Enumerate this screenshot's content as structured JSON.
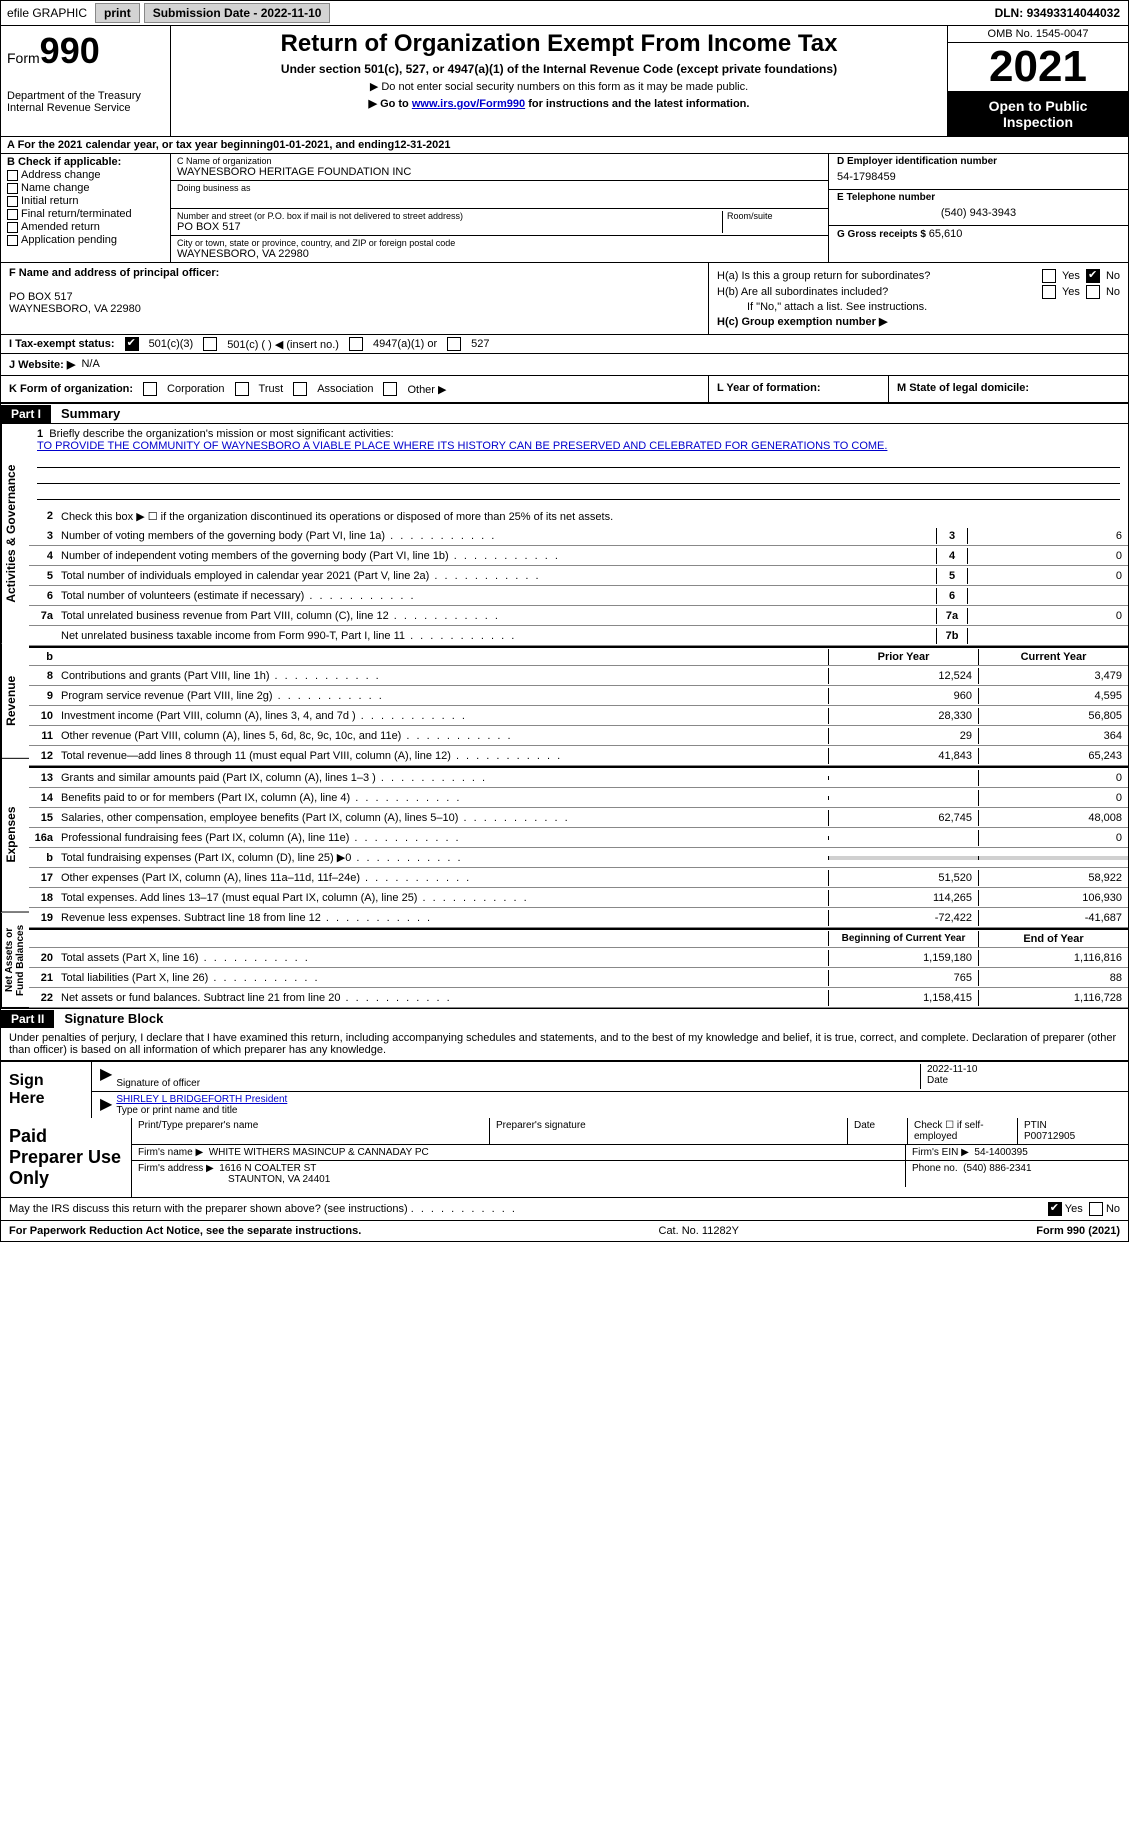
{
  "topbar": {
    "efile": "efile GRAPHIC",
    "print": "print",
    "sub_label": "Submission Date - ",
    "sub_date": "2022-11-10",
    "dln_label": "DLN: ",
    "dln": "93493314044032"
  },
  "header": {
    "form_word": "Form",
    "form_num": "990",
    "dept": "Department of the Treasury",
    "irs": "Internal Revenue Service",
    "title": "Return of Organization Exempt From Income Tax",
    "sub1": "Under section 501(c), 527, or 4947(a)(1) of the Internal Revenue Code (except private foundations)",
    "sub2": "▶ Do not enter social security numbers on this form as it may be made public.",
    "sub3_pre": "▶ Go to ",
    "sub3_link": "www.irs.gov/Form990",
    "sub3_post": " for instructions and the latest information.",
    "omb": "OMB No. 1545-0047",
    "year": "2021",
    "inspect1": "Open to Public",
    "inspect2": "Inspection"
  },
  "lineA": {
    "text_pre": "A For the 2021 calendar year, or tax year beginning ",
    "begin": "01-01-2021",
    "mid": " , and ending ",
    "end": "12-31-2021"
  },
  "sectionB": {
    "hdr": "B Check if applicable:",
    "opts": [
      "Address change",
      "Name change",
      "Initial return",
      "Final return/terminated",
      "Amended return",
      "Application pending"
    ]
  },
  "sectionC": {
    "name_lbl": "C Name of organization",
    "name": "WAYNESBORO HERITAGE FOUNDATION INC",
    "dba_lbl": "Doing business as",
    "dba": "",
    "addr_lbl": "Number and street (or P.O. box if mail is not delivered to street address)",
    "room_lbl": "Room/suite",
    "addr": "PO BOX 517",
    "city_lbl": "City or town, state or province, country, and ZIP or foreign postal code",
    "city": "WAYNESBORO, VA  22980"
  },
  "sectionD": {
    "ein_lbl": "D Employer identification number",
    "ein": "54-1798459",
    "tel_lbl": "E Telephone number",
    "tel": "(540) 943-3943",
    "gross_lbl": "G Gross receipts $ ",
    "gross": "65,610"
  },
  "sectionF": {
    "lbl": "F Name and address of principal officer:",
    "name": "",
    "addr1": "PO BOX 517",
    "addr2": "WAYNESBORO, VA  22980"
  },
  "sectionH": {
    "ha_lbl": "H(a)  Is this a group return for subordinates?",
    "hb_lbl": "H(b)  Are all subordinates included?",
    "hb_note": "If \"No,\" attach a list. See instructions.",
    "hc_lbl": "H(c)  Group exemption number ▶",
    "yes": "Yes",
    "no": "No"
  },
  "rowI": {
    "lbl": "I  Tax-exempt status:",
    "o1": "501(c)(3)",
    "o2": "501(c) (   ) ◀ (insert no.)",
    "o3": "4947(a)(1) or",
    "o4": "527"
  },
  "rowJ": {
    "lbl": "J  Website: ▶",
    "val": "N/A"
  },
  "rowK": {
    "lbl": "K Form of organization:",
    "opts": [
      "Corporation",
      "Trust",
      "Association",
      "Other ▶"
    ],
    "l_lbl": "L Year of formation:",
    "l_val": "",
    "m_lbl": "M State of legal domicile:",
    "m_val": ""
  },
  "part1": {
    "hdr": "Part I",
    "title": "Summary"
  },
  "summary": {
    "side1": "Activities & Governance",
    "side2": "Revenue",
    "side3": "Expenses",
    "side4": "Net Assets or Fund Balances",
    "l1_lbl": "Briefly describe the organization's mission or most significant activities:",
    "l1_val": "TO PROVIDE THE COMMUNITY OF WAYNESBORO A VIABLE PLACE WHERE ITS HISTORY CAN BE PRESERVED AND CELEBRATED FOR GENERATIONS TO COME.",
    "l2": "Check this box ▶ ☐ if the organization discontinued its operations or disposed of more than 25% of its net assets.",
    "lines_gov": [
      {
        "n": "3",
        "t": "Number of voting members of the governing body (Part VI, line 1a)",
        "b": "3",
        "v": "6"
      },
      {
        "n": "4",
        "t": "Number of independent voting members of the governing body (Part VI, line 1b)",
        "b": "4",
        "v": "0"
      },
      {
        "n": "5",
        "t": "Total number of individuals employed in calendar year 2021 (Part V, line 2a)",
        "b": "5",
        "v": "0"
      },
      {
        "n": "6",
        "t": "Total number of volunteers (estimate if necessary)",
        "b": "6",
        "v": ""
      },
      {
        "n": "7a",
        "t": "Total unrelated business revenue from Part VIII, column (C), line 12",
        "b": "7a",
        "v": "0"
      },
      {
        "n": "",
        "t": "Net unrelated business taxable income from Form 990-T, Part I, line 11",
        "b": "7b",
        "v": ""
      }
    ],
    "col_prior": "Prior Year",
    "col_current": "Current Year",
    "lines_rev": [
      {
        "n": "8",
        "t": "Contributions and grants (Part VIII, line 1h)",
        "p": "12,524",
        "c": "3,479"
      },
      {
        "n": "9",
        "t": "Program service revenue (Part VIII, line 2g)",
        "p": "960",
        "c": "4,595"
      },
      {
        "n": "10",
        "t": "Investment income (Part VIII, column (A), lines 3, 4, and 7d )",
        "p": "28,330",
        "c": "56,805"
      },
      {
        "n": "11",
        "t": "Other revenue (Part VIII, column (A), lines 5, 6d, 8c, 9c, 10c, and 11e)",
        "p": "29",
        "c": "364"
      },
      {
        "n": "12",
        "t": "Total revenue—add lines 8 through 11 (must equal Part VIII, column (A), line 12)",
        "p": "41,843",
        "c": "65,243"
      }
    ],
    "lines_exp": [
      {
        "n": "13",
        "t": "Grants and similar amounts paid (Part IX, column (A), lines 1–3 )",
        "p": "",
        "c": "0"
      },
      {
        "n": "14",
        "t": "Benefits paid to or for members (Part IX, column (A), line 4)",
        "p": "",
        "c": "0"
      },
      {
        "n": "15",
        "t": "Salaries, other compensation, employee benefits (Part IX, column (A), lines 5–10)",
        "p": "62,745",
        "c": "48,008"
      },
      {
        "n": "16a",
        "t": "Professional fundraising fees (Part IX, column (A), line 11e)",
        "p": "",
        "c": "0"
      },
      {
        "n": "b",
        "t": "Total fundraising expenses (Part IX, column (D), line 25) ▶0",
        "p": "SHADE",
        "c": "SHADE"
      },
      {
        "n": "17",
        "t": "Other expenses (Part IX, column (A), lines 11a–11d, 11f–24e)",
        "p": "51,520",
        "c": "58,922"
      },
      {
        "n": "18",
        "t": "Total expenses. Add lines 13–17 (must equal Part IX, column (A), line 25)",
        "p": "114,265",
        "c": "106,930"
      },
      {
        "n": "19",
        "t": "Revenue less expenses. Subtract line 18 from line 12",
        "p": "-72,422",
        "c": "-41,687"
      }
    ],
    "col_begin": "Beginning of Current Year",
    "col_end": "End of Year",
    "lines_net": [
      {
        "n": "20",
        "t": "Total assets (Part X, line 16)",
        "p": "1,159,180",
        "c": "1,116,816"
      },
      {
        "n": "21",
        "t": "Total liabilities (Part X, line 26)",
        "p": "765",
        "c": "88"
      },
      {
        "n": "22",
        "t": "Net assets or fund balances. Subtract line 21 from line 20",
        "p": "1,158,415",
        "c": "1,116,728"
      }
    ]
  },
  "part2": {
    "hdr": "Part II",
    "title": "Signature Block",
    "decl": "Under penalties of perjury, I declare that I have examined this return, including accompanying schedules and statements, and to the best of my knowledge and belief, it is true, correct, and complete. Declaration of preparer (other than officer) is based on all information of which preparer has any knowledge."
  },
  "sign": {
    "here": "Sign Here",
    "sig_lbl": "Signature of officer",
    "date_lbl": "Date",
    "date_val": "2022-11-10",
    "name_val": "SHIRLEY L BRIDGEFORTH  President",
    "name_lbl": "Type or print name and title"
  },
  "paid": {
    "hdr": "Paid Preparer Use Only",
    "r1": {
      "c1": "Print/Type preparer's name",
      "c2": "Preparer's signature",
      "c3": "Date",
      "c4_lbl": "Check ☐ if self-employed",
      "c5_lbl": "PTIN",
      "c5_val": "P00712905"
    },
    "r2": {
      "lbl": "Firm's name    ▶",
      "val": "WHITE WITHERS MASINCUP & CANNADAY PC",
      "ein_lbl": "Firm's EIN ▶",
      "ein_val": "54-1400395"
    },
    "r3": {
      "lbl": "Firm's address ▶",
      "val1": "1616 N COALTER ST",
      "val2": "STAUNTON, VA  24401",
      "ph_lbl": "Phone no.",
      "ph_val": "(540) 886-2341"
    }
  },
  "footer": {
    "q": "May the IRS discuss this return with the preparer shown above? (see instructions)",
    "yes": "Yes",
    "no": "No"
  },
  "last": {
    "l": "For Paperwork Reduction Act Notice, see the separate instructions.",
    "m": "Cat. No. 11282Y",
    "r": "Form 990 (2021)"
  }
}
